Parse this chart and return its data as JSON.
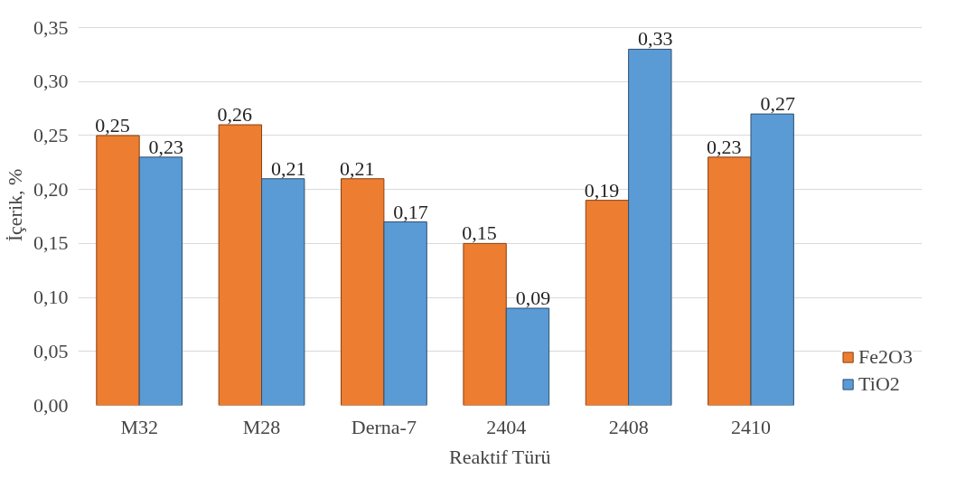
{
  "chart_data": {
    "type": "bar",
    "xlabel": "Reaktif Türü",
    "ylabel": "İçerik, %",
    "categories": [
      "M32",
      "M28",
      "Derna-7",
      "2404",
      "2408",
      "2410"
    ],
    "series": [
      {
        "name": "Fe2O3",
        "color": "#ed7d31",
        "values": [
          0.25,
          0.26,
          0.21,
          0.15,
          0.19,
          0.23
        ],
        "value_labels": [
          "0,25",
          "0,26",
          "0,21",
          "0,15",
          "0,19",
          "0,23"
        ]
      },
      {
        "name": "TiO2",
        "color": "#5b9bd5",
        "values": [
          0.23,
          0.21,
          0.17,
          0.09,
          0.33,
          0.27
        ],
        "value_labels": [
          "0,23",
          "0,21",
          "0,17",
          "0,09",
          "0,33",
          "0,27"
        ]
      }
    ],
    "ylim": [
      0,
      0.35
    ],
    "yticks": [
      {
        "value": 0,
        "label": "0,00"
      },
      {
        "value": 0.05,
        "label": "0,05"
      },
      {
        "value": 0.1,
        "label": "0,10"
      },
      {
        "value": 0.15,
        "label": "0,15"
      },
      {
        "value": 0.2,
        "label": "0,20"
      },
      {
        "value": 0.25,
        "label": "0,25"
      },
      {
        "value": 0.3,
        "label": "0,30"
      },
      {
        "value": 0.35,
        "label": "0,35"
      }
    ],
    "grid": "y",
    "legend": "bottom right"
  }
}
